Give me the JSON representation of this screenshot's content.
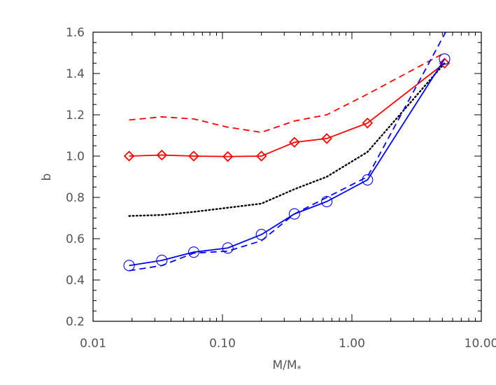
{
  "chart_data": {
    "type": "line",
    "xlabel": "M/M",
    "xlabel_subscript": "*",
    "ylabel": "b",
    "xscale": "log",
    "xlim": [
      0.01,
      10.0
    ],
    "ylim": [
      0.2,
      1.6
    ],
    "grid": false,
    "x_ticks": [
      {
        "value": 0.01,
        "label": "0.01"
      },
      {
        "value": 0.1,
        "label": "0.10"
      },
      {
        "value": 1.0,
        "label": "1.00"
      },
      {
        "value": 10.0,
        "label": "10.00"
      }
    ],
    "y_ticks": [
      {
        "value": 0.2,
        "label": "0.2"
      },
      {
        "value": 0.4,
        "label": "0.4"
      },
      {
        "value": 0.6,
        "label": "0.6"
      },
      {
        "value": 0.8,
        "label": "0.8"
      },
      {
        "value": 1.0,
        "label": "1.0"
      },
      {
        "value": 1.2,
        "label": "1.2"
      },
      {
        "value": 1.4,
        "label": "1.4"
      },
      {
        "value": 1.6,
        "label": "1.6"
      }
    ],
    "series": [
      {
        "color": "#ff0000",
        "line_style": "dashed",
        "marker": "none",
        "x": [
          0.019,
          0.034,
          0.06,
          0.11,
          0.2,
          0.36,
          0.64,
          1.32,
          5.2
        ],
        "y": [
          1.175,
          1.19,
          1.18,
          1.14,
          1.115,
          1.17,
          1.2,
          1.3,
          1.5
        ]
      },
      {
        "color": "#ff0000",
        "line_style": "solid",
        "marker": "diamond",
        "x": [
          0.019,
          0.034,
          0.06,
          0.11,
          0.2,
          0.36,
          0.64,
          1.32,
          5.2
        ],
        "y": [
          1.0,
          1.005,
          1.0,
          0.998,
          1.0,
          1.067,
          1.085,
          1.16,
          1.45
        ]
      },
      {
        "color": "#000000",
        "line_style": "dotted",
        "marker": "none",
        "x": [
          0.019,
          0.034,
          0.06,
          0.11,
          0.2,
          0.36,
          0.64,
          1.32,
          5.2
        ],
        "y": [
          0.71,
          0.715,
          0.73,
          0.75,
          0.77,
          0.84,
          0.9,
          1.02,
          1.45
        ]
      },
      {
        "color": "#0000ff",
        "line_style": "dashed",
        "marker": "none",
        "x": [
          0.019,
          0.034,
          0.06,
          0.11,
          0.2,
          0.36,
          0.64,
          1.32,
          5.3
        ],
        "y": [
          0.445,
          0.47,
          0.53,
          0.54,
          0.59,
          0.72,
          0.8,
          0.9,
          1.6
        ]
      },
      {
        "color": "#0000ff",
        "line_style": "solid",
        "marker": "circle",
        "x": [
          0.019,
          0.034,
          0.06,
          0.11,
          0.2,
          0.36,
          0.64,
          1.32,
          5.2
        ],
        "y": [
          0.47,
          0.495,
          0.535,
          0.555,
          0.62,
          0.72,
          0.78,
          0.885,
          1.47
        ]
      }
    ]
  }
}
